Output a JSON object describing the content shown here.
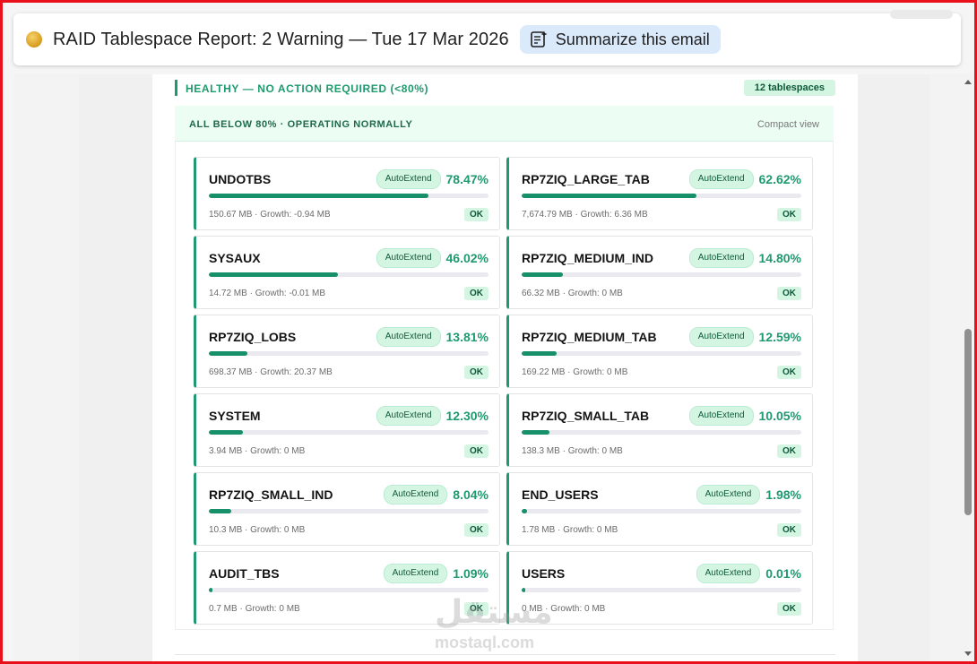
{
  "header": {
    "subject": "RAID Tablespace Report: 2 Warning — Tue 17 Mar 2026",
    "summarize_label": "Summarize this email",
    "icon": "summarize-sparkle-icon"
  },
  "section": {
    "title": "HEALTHY — NO ACTION REQUIRED (<80%)",
    "count_badge": "12 tablespaces",
    "subheader": "ALL BELOW 80% · OPERATING NORMALLY",
    "view_toggle": "Compact view"
  },
  "colors": {
    "accent": "#1f9a6e",
    "badge_bg": "#d5f5e3",
    "badge_text": "#0e5a3b"
  },
  "tablespaces": [
    {
      "name": "UNDOTBS",
      "tag": "AutoExtend",
      "pct_label": "78.47%",
      "pct": 78.47,
      "meta": "150.67 MB · Growth: -0.94 MB",
      "status": "OK"
    },
    {
      "name": "RP7ZIQ_LARGE_TAB",
      "tag": "AutoExtend",
      "pct_label": "62.62%",
      "pct": 62.62,
      "meta": "7,674.79 MB · Growth: 6.36 MB",
      "status": "OK"
    },
    {
      "name": "SYSAUX",
      "tag": "AutoExtend",
      "pct_label": "46.02%",
      "pct": 46.02,
      "meta": "14.72 MB · Growth: -0.01 MB",
      "status": "OK"
    },
    {
      "name": "RP7ZIQ_MEDIUM_IND",
      "tag": "AutoExtend",
      "pct_label": "14.80%",
      "pct": 14.8,
      "meta": "66.32 MB · Growth: 0 MB",
      "status": "OK"
    },
    {
      "name": "RP7ZIQ_LOBS",
      "tag": "AutoExtend",
      "pct_label": "13.81%",
      "pct": 13.81,
      "meta": "698.37 MB · Growth: 20.37 MB",
      "status": "OK"
    },
    {
      "name": "RP7ZIQ_MEDIUM_TAB",
      "tag": "AutoExtend",
      "pct_label": "12.59%",
      "pct": 12.59,
      "meta": "169.22 MB · Growth: 0 MB",
      "status": "OK"
    },
    {
      "name": "SYSTEM",
      "tag": "AutoExtend",
      "pct_label": "12.30%",
      "pct": 12.3,
      "meta": "3.94 MB · Growth: 0 MB",
      "status": "OK"
    },
    {
      "name": "RP7ZIQ_SMALL_TAB",
      "tag": "AutoExtend",
      "pct_label": "10.05%",
      "pct": 10.05,
      "meta": "138.3 MB · Growth: 0 MB",
      "status": "OK"
    },
    {
      "name": "RP7ZIQ_SMALL_IND",
      "tag": "AutoExtend",
      "pct_label": "8.04%",
      "pct": 8.04,
      "meta": "10.3 MB · Growth: 0 MB",
      "status": "OK"
    },
    {
      "name": "END_USERS",
      "tag": "AutoExtend",
      "pct_label": "1.98%",
      "pct": 1.98,
      "meta": "1.78 MB · Growth: 0 MB",
      "status": "OK"
    },
    {
      "name": "AUDIT_TBS",
      "tag": "AutoExtend",
      "pct_label": "1.09%",
      "pct": 1.09,
      "meta": "0.7 MB · Growth: 0 MB",
      "status": "OK"
    },
    {
      "name": "USERS",
      "tag": "AutoExtend",
      "pct_label": "0.01%",
      "pct": 0.01,
      "meta": "0 MB · Growth: 0 MB",
      "status": "OK"
    }
  ],
  "watermark": {
    "arabic": "مستقل",
    "latin": "mostaql.com"
  }
}
